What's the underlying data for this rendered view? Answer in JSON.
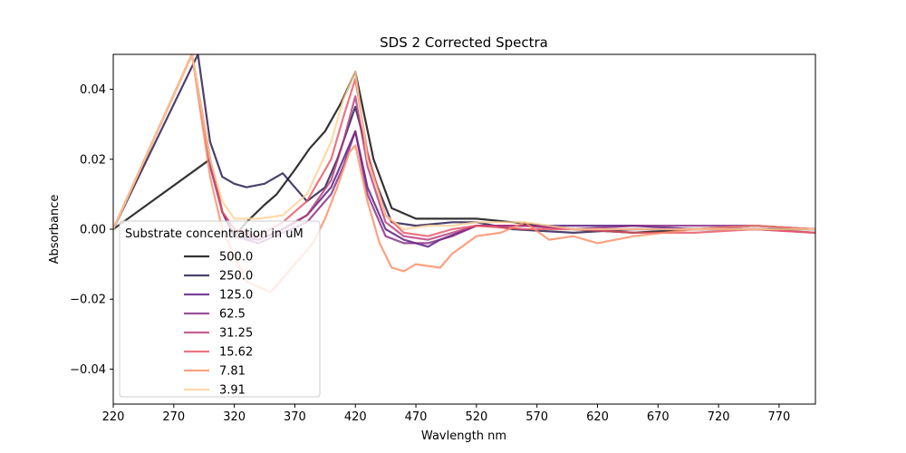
{
  "chart_data": {
    "type": "line",
    "title": "SDS 2 Corrected Spectra",
    "xlabel": "Wavlength nm",
    "ylabel": "Absorbance",
    "xlim": [
      220,
      800
    ],
    "ylim": [
      -0.05,
      0.05
    ],
    "xticks": [
      220,
      270,
      320,
      370,
      420,
      470,
      520,
      570,
      620,
      670,
      720,
      770
    ],
    "yticks": [
      -0.04,
      -0.02,
      0.0,
      0.02,
      0.04
    ],
    "ytick_labels": [
      "−0.04",
      "−0.02",
      "0.00",
      "0.02",
      "0.04"
    ],
    "grid": false,
    "legend": {
      "title": "Substrate concentration in uM",
      "placement": "lower-left"
    },
    "series": [
      {
        "name": "500.0",
        "color": "#000004",
        "x": [
          220,
          300,
          310,
          320,
          330,
          345,
          355,
          370,
          382,
          395,
          408,
          420,
          435,
          450,
          470,
          500,
          520,
          550,
          600,
          650,
          700,
          750,
          800
        ],
        "y": [
          0.0,
          0.02,
          0.005,
          -0.002,
          0.002,
          0.007,
          0.01,
          0.017,
          0.023,
          0.028,
          0.036,
          0.045,
          0.02,
          0.006,
          0.003,
          0.003,
          0.003,
          0.002,
          0.0,
          -0.001,
          0.0,
          0.0,
          0.0
        ]
      },
      {
        "name": "250.0",
        "color": "#1d1147",
        "x": [
          220,
          290,
          300,
          310,
          320,
          330,
          345,
          360,
          370,
          380,
          395,
          405,
          420,
          435,
          450,
          470,
          500,
          520,
          550,
          600,
          650,
          700,
          750,
          800
        ],
        "y": [
          0.0,
          0.05,
          0.025,
          0.015,
          0.013,
          0.012,
          0.013,
          0.016,
          0.012,
          0.008,
          0.012,
          0.02,
          0.035,
          0.015,
          0.002,
          0.001,
          0.002,
          0.002,
          0.0,
          -0.001,
          0.0,
          0.0,
          0.0,
          0.0
        ]
      },
      {
        "name": "125.0",
        "color": "#51127c",
        "x": [
          220,
          285,
          300,
          310,
          320,
          340,
          360,
          380,
          400,
          410,
          420,
          430,
          445,
          460,
          480,
          490,
          520,
          560,
          600,
          650,
          700,
          750,
          800
        ],
        "y": [
          0.0,
          0.05,
          0.02,
          0.005,
          -0.002,
          -0.003,
          0.0,
          0.004,
          0.012,
          0.02,
          0.028,
          0.012,
          0.0,
          -0.003,
          -0.005,
          -0.003,
          0.001,
          0.001,
          0.001,
          0.001,
          0.0,
          0.001,
          0.0
        ]
      },
      {
        "name": "62.5",
        "color": "#822681",
        "x": [
          220,
          285,
          300,
          310,
          320,
          340,
          360,
          380,
          400,
          410,
          420,
          430,
          445,
          460,
          480,
          500,
          520,
          560,
          600,
          650,
          700,
          750,
          800
        ],
        "y": [
          0.0,
          0.05,
          0.018,
          0.005,
          -0.002,
          -0.004,
          -0.001,
          0.002,
          0.01,
          0.018,
          0.028,
          0.01,
          -0.002,
          -0.004,
          -0.004,
          -0.002,
          0.001,
          0.001,
          0.0,
          0.001,
          0.001,
          0.001,
          0.0
        ]
      },
      {
        "name": "31.25",
        "color": "#b73779",
        "x": [
          220,
          285,
          300,
          310,
          320,
          340,
          360,
          380,
          400,
          410,
          420,
          430,
          445,
          460,
          480,
          500,
          520,
          560,
          600,
          650,
          700,
          750,
          800
        ],
        "y": [
          0.0,
          0.05,
          0.02,
          0.005,
          0.0,
          -0.003,
          0.0,
          0.004,
          0.014,
          0.025,
          0.038,
          0.018,
          0.002,
          -0.002,
          -0.003,
          -0.001,
          0.001,
          0.001,
          0.0,
          0.0,
          0.0,
          0.0,
          -0.001
        ]
      },
      {
        "name": "15.62",
        "color": "#e75263",
        "x": [
          220,
          285,
          300,
          310,
          320,
          340,
          360,
          380,
          400,
          410,
          420,
          430,
          445,
          460,
          480,
          500,
          520,
          560,
          600,
          650,
          700,
          750,
          800
        ],
        "y": [
          0.0,
          0.05,
          0.02,
          0.005,
          0.0,
          -0.002,
          0.002,
          0.008,
          0.02,
          0.032,
          0.043,
          0.022,
          0.004,
          -0.001,
          -0.002,
          0.0,
          0.001,
          0.0,
          0.0,
          -0.001,
          -0.001,
          0.0,
          -0.001
        ]
      },
      {
        "name": "7.81",
        "color": "#fc8961",
        "x": [
          220,
          285,
          300,
          310,
          330,
          350,
          370,
          385,
          395,
          405,
          415,
          420,
          430,
          440,
          450,
          460,
          470,
          490,
          500,
          520,
          540,
          560,
          580,
          600,
          620,
          650,
          700,
          750,
          800
        ],
        "y": [
          0.0,
          0.05,
          0.015,
          0.0,
          -0.015,
          -0.018,
          -0.01,
          -0.004,
          0.003,
          0.012,
          0.022,
          0.024,
          0.008,
          -0.004,
          -0.011,
          -0.012,
          -0.01,
          -0.011,
          -0.007,
          -0.002,
          -0.001,
          0.002,
          -0.003,
          -0.002,
          -0.004,
          -0.002,
          0.0,
          0.001,
          0.0
        ]
      },
      {
        "name": "3.91",
        "color": "#fecf92",
        "x": [
          220,
          285,
          300,
          310,
          320,
          340,
          360,
          380,
          400,
          410,
          420,
          430,
          445,
          460,
          480,
          500,
          520,
          560,
          600,
          650,
          700,
          750,
          800
        ],
        "y": [
          0.0,
          0.05,
          0.02,
          0.008,
          0.003,
          0.003,
          0.004,
          0.01,
          0.025,
          0.037,
          0.045,
          0.02,
          0.004,
          0.0,
          0.001,
          0.001,
          0.002,
          0.002,
          0.0,
          0.0,
          0.0,
          0.0,
          0.0
        ]
      }
    ]
  }
}
